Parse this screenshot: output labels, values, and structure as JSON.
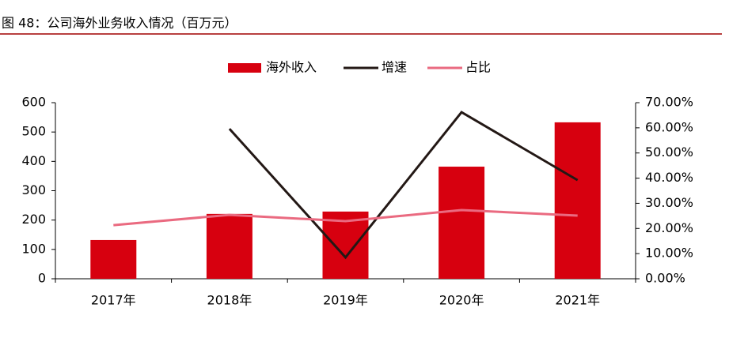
{
  "chart_data": {
    "type": "bar",
    "title": "图 48：公司海外业务收入情况（百万元）",
    "categories": [
      "2017年",
      "2018年",
      "2019年",
      "2020年",
      "2021年"
    ],
    "series": [
      {
        "name": "海外收入",
        "type": "bar",
        "color": "#d7000f",
        "values": [
          132,
          221,
          229,
          382,
          533
        ]
      },
      {
        "name": "增速",
        "type": "line",
        "axis": "y2",
        "color": "#231815",
        "values": [
          null,
          59.6,
          8.5,
          66.2,
          39.2
        ]
      },
      {
        "name": "占比",
        "type": "line",
        "axis": "y2",
        "color": "#ea6a80",
        "values": [
          21.3,
          25.4,
          22.9,
          27.3,
          25.1
        ]
      }
    ],
    "ylim": [
      0,
      600
    ],
    "yticks": [
      0,
      100,
      200,
      300,
      400,
      500,
      600
    ],
    "y2lim": [
      0,
      70
    ],
    "y2ticks": [
      {
        "value": 0,
        "label": "0.00%"
      },
      {
        "value": 10,
        "label": "10.00%"
      },
      {
        "value": 20,
        "label": "20.00%"
      },
      {
        "value": 30,
        "label": "30.00%"
      },
      {
        "value": 40,
        "label": "40.00%"
      },
      {
        "value": 50,
        "label": "50.00%"
      },
      {
        "value": 60,
        "label": "60.00%"
      },
      {
        "value": 70,
        "label": "70.00%"
      }
    ],
    "legend": "top"
  }
}
